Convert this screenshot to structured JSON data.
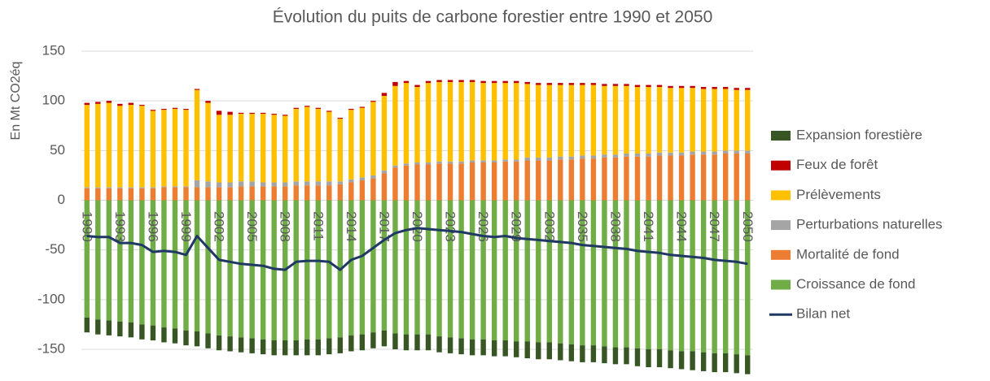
{
  "chart_data": {
    "type": "bar",
    "stacked": true,
    "title": "Évolution du puits de carbone forestier entre 1990 et 2050",
    "y_label": "En Mt CO2éq",
    "categories": [
      "1990",
      null,
      null,
      "1993",
      null,
      null,
      "1996",
      null,
      null,
      "1999",
      null,
      null,
      "2002",
      null,
      null,
      "2005",
      null,
      null,
      "2008",
      null,
      null,
      "2011",
      null,
      null,
      "2014",
      null,
      null,
      "2017",
      null,
      null,
      "2020",
      null,
      null,
      "2023",
      null,
      null,
      "2026",
      null,
      null,
      "2029",
      null,
      null,
      "2032",
      null,
      null,
      "2035",
      null,
      null,
      "2038",
      null,
      null,
      "2041",
      null,
      null,
      "2044",
      null,
      null,
      "2047",
      null,
      null,
      "2050"
    ],
    "ylim": [
      -150,
      150
    ],
    "yticks": [
      -150,
      -100,
      -50,
      0,
      50,
      100,
      150
    ],
    "grid": true,
    "legend": "right",
    "series": [
      {
        "name": "Croissance de fond",
        "color": "#70ad47",
        "values": [
          -118,
          -120,
          -121,
          -122,
          -123,
          -125,
          -126,
          -128,
          -129,
          -131,
          -132,
          -134,
          -136,
          -137,
          -138,
          -139,
          -140,
          -141,
          -141,
          -141,
          -140,
          -140,
          -139,
          -138,
          -136,
          -135,
          -133,
          -131,
          -134,
          -135,
          -135,
          -135,
          -137,
          -138,
          -139,
          -140,
          -140,
          -141,
          -141,
          -142,
          -142,
          -143,
          -143,
          -144,
          -145,
          -146,
          -146,
          -147,
          -148,
          -148,
          -149,
          -150,
          -150,
          -151,
          -152,
          -152,
          -153,
          -154,
          -154,
          -155,
          -156
        ]
      },
      {
        "name": "Mortalité de fond",
        "color": "#ed7d31",
        "values": [
          12,
          12,
          12,
          12,
          12,
          12,
          12,
          13,
          13,
          13,
          13,
          13,
          13,
          13,
          14,
          14,
          14,
          14,
          14,
          15,
          15,
          15,
          15,
          16,
          18,
          20,
          22,
          27,
          33,
          35,
          36,
          36,
          37,
          37,
          37,
          38,
          38,
          38,
          39,
          39,
          40,
          40,
          40,
          41,
          41,
          42,
          42,
          43,
          43,
          44,
          44,
          44,
          45,
          45,
          45,
          46,
          46,
          46,
          47,
          47,
          47
        ]
      },
      {
        "name": "Perturbations naturelles",
        "color": "#a5a5a5",
        "values": [
          1,
          1,
          1,
          1,
          1,
          1,
          1,
          1,
          1,
          1,
          7,
          6,
          5,
          5,
          5,
          5,
          4,
          4,
          4,
          4,
          4,
          4,
          4,
          3,
          3,
          3,
          3,
          3,
          2,
          2,
          2,
          2,
          2,
          2,
          2,
          2,
          2,
          2,
          2,
          2,
          3,
          3,
          3,
          3,
          3,
          3,
          3,
          3,
          3,
          3,
          3,
          3,
          3,
          3,
          3,
          3,
          3,
          3,
          3,
          3,
          3
        ]
      },
      {
        "name": "Prélèvements",
        "color": "#ffc000",
        "values": [
          83,
          84,
          85,
          82,
          83,
          82,
          77,
          77,
          78,
          77,
          91,
          79,
          68,
          68,
          68,
          68,
          69,
          68,
          67,
          73,
          75,
          73,
          70,
          63,
          70,
          70,
          74,
          75,
          80,
          81,
          76,
          80,
          80,
          80,
          80,
          79,
          78,
          78,
          77,
          77,
          74,
          73,
          73,
          72,
          72,
          71,
          71,
          69,
          69,
          68,
          67,
          67,
          66,
          65,
          65,
          64,
          63,
          63,
          62,
          61,
          61
        ]
      },
      {
        "name": "Feux de forêt",
        "color": "#c00000",
        "values": [
          2,
          2,
          2,
          2,
          2,
          1,
          1,
          1,
          1,
          1,
          1,
          2,
          4,
          3,
          1,
          1,
          1,
          1,
          1,
          1,
          1,
          1,
          1,
          1,
          1,
          1,
          1,
          3,
          4,
          2,
          2,
          2,
          2,
          2,
          2,
          2,
          2,
          2,
          2,
          2,
          2,
          2,
          2,
          2,
          2,
          2,
          2,
          2,
          2,
          2,
          2,
          2,
          2,
          2,
          2,
          2,
          2,
          2,
          2,
          2,
          2
        ]
      },
      {
        "name": "Expansion forestière",
        "color": "#375623",
        "values": [
          -15,
          -15,
          -15,
          -15,
          -15,
          -15,
          -15,
          -15,
          -15,
          -15,
          -15,
          -15,
          -15,
          -15,
          -15,
          -15,
          -15,
          -15,
          -15,
          -15,
          -16,
          -16,
          -16,
          -16,
          -16,
          -16,
          -16,
          -16,
          -16,
          -16,
          -16,
          -16,
          -16,
          -16,
          -16,
          -16,
          -16,
          -16,
          -16,
          -16,
          -17,
          -17,
          -17,
          -17,
          -17,
          -17,
          -17,
          -17,
          -17,
          -17,
          -18,
          -18,
          -18,
          -18,
          -18,
          -19,
          -19,
          -19,
          -19,
          -19,
          -19
        ]
      },
      {
        "name": "Bilan net",
        "type": "line",
        "color": "#1f3864",
        "values": [
          -36,
          -37,
          -37,
          -43,
          -43,
          -45,
          -52,
          -51,
          -52,
          -55,
          -36,
          -48,
          -60,
          -62,
          -64,
          -65,
          -66,
          -69,
          -70,
          -62,
          -61,
          -61,
          -62,
          -70,
          -60,
          -56,
          -48,
          -40,
          -33,
          -30,
          -28,
          -29,
          -30,
          -31,
          -32,
          -34,
          -36,
          -37,
          -36,
          -38,
          -39,
          -40,
          -41,
          -42,
          -43,
          -45,
          -46,
          -47,
          -48,
          -49,
          -51,
          -52,
          -53,
          -55,
          -56,
          -57,
          -58,
          -60,
          -61,
          -62,
          -64
        ]
      }
    ]
  }
}
